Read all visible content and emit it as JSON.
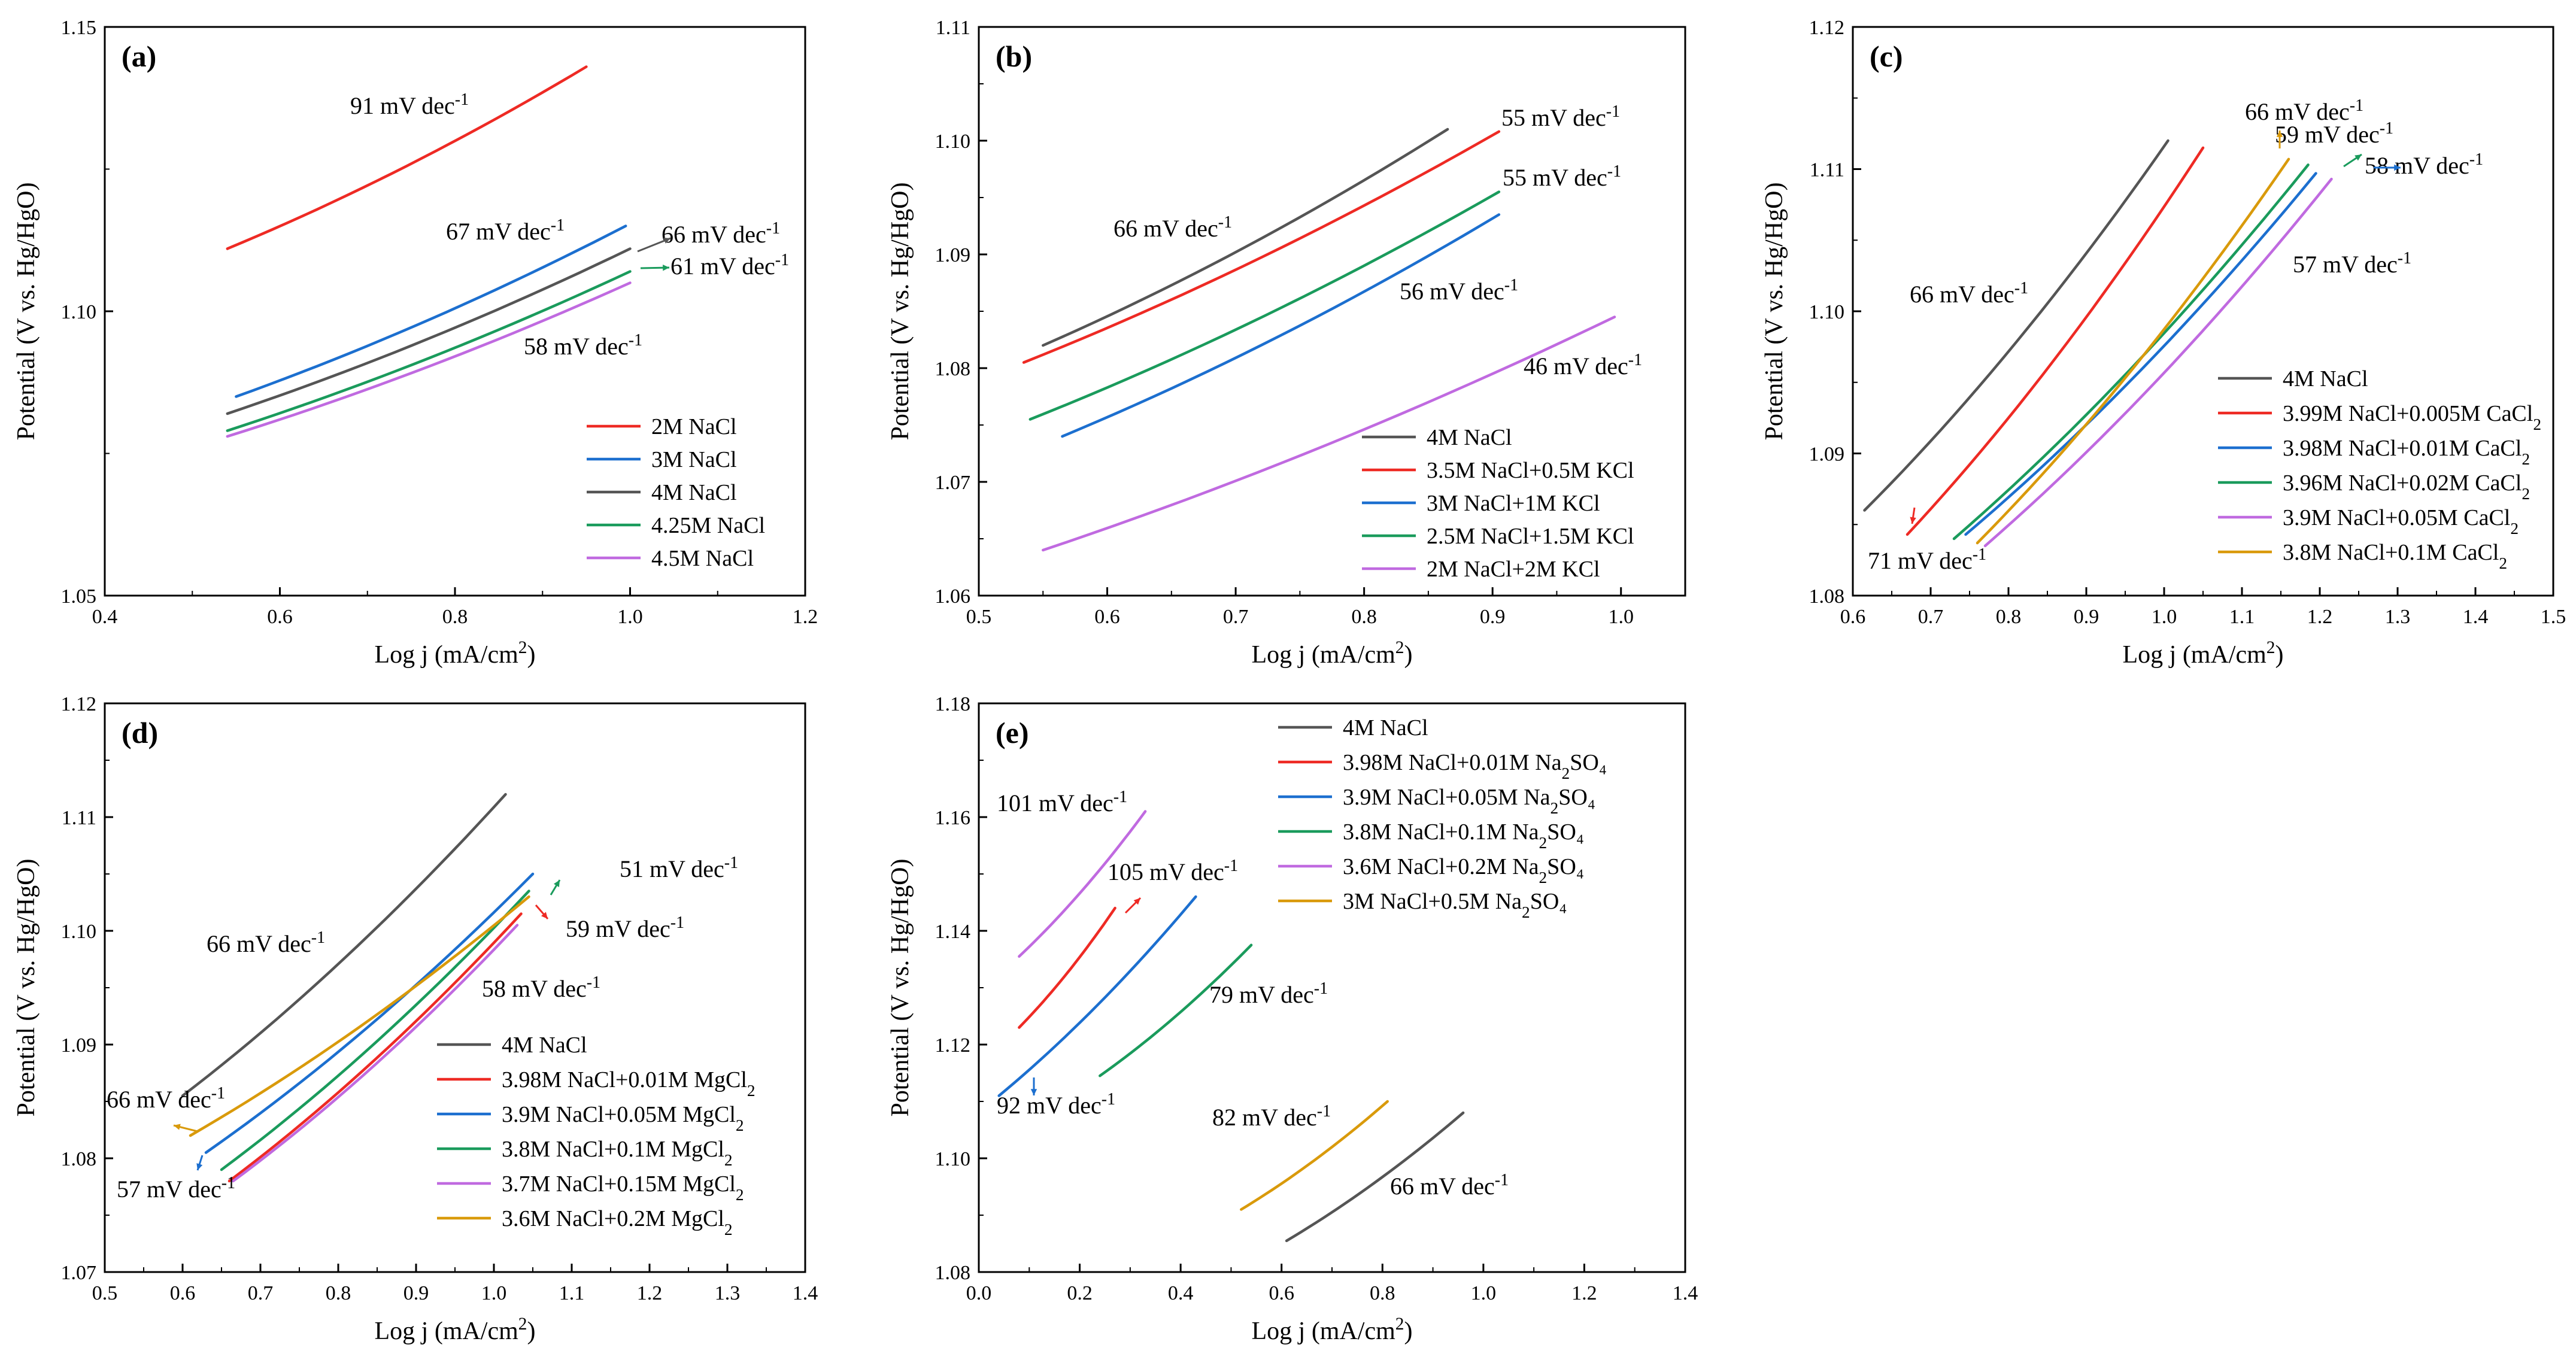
{
  "figure": {
    "panels": [
      {
        "id": "a",
        "panel_label": "(a)",
        "xlabel": "Log j (mA/cm²)",
        "ylabel": "Potential (V vs. Hg/HgO)",
        "xlim": [
          0.4,
          1.2
        ],
        "ylim": [
          1.05,
          1.15
        ],
        "xticks": [
          "0.4",
          "0.6",
          "0.8",
          "1.0",
          "1.2"
        ],
        "yticks": [
          "1.05",
          "1.10",
          "1.15"
        ],
        "legend": [
          "2M NaCl",
          "3M NaCl",
          "4M NaCl",
          "4.25M NaCl",
          "4.5M NaCl"
        ],
        "slopes": [
          "91 mV dec⁻¹",
          "67 mV dec⁻¹",
          "66 mV dec⁻¹",
          "61 mV dec⁻¹",
          "58 mV dec⁻¹"
        ]
      },
      {
        "id": "b",
        "panel_label": "(b)",
        "xlabel": "Log j (mA/cm²)",
        "ylabel": "Potential (V vs. Hg/HgO)",
        "xlim": [
          0.5,
          1.05
        ],
        "ylim": [
          1.06,
          1.11
        ],
        "xticks": [
          "0.5",
          "0.6",
          "0.7",
          "0.8",
          "0.9",
          "1.0"
        ],
        "yticks": [
          "1.06",
          "1.07",
          "1.08",
          "1.09",
          "1.10",
          "1.11"
        ],
        "legend": [
          "4M NaCl",
          "3.5M NaCl+0.5M KCl",
          "3M NaCl+1M KCl",
          "2.5M NaCl+1.5M KCl",
          "2M NaCl+2M KCl"
        ],
        "slopes": [
          "66 mV dec⁻¹",
          "55 mV dec⁻¹",
          "55 mV dec⁻¹",
          "56 mV dec⁻¹",
          "46 mV dec⁻¹"
        ]
      },
      {
        "id": "c",
        "panel_label": "(c)",
        "xlabel": "Log j (mA/cm²)",
        "ylabel": "Potential (V vs. Hg/HgO)",
        "xlim": [
          0.6,
          1.5
        ],
        "ylim": [
          1.08,
          1.12
        ],
        "xticks": [
          "0.6",
          "0.7",
          "0.8",
          "0.9",
          "1.0",
          "1.1",
          "1.2",
          "1.3",
          "1.4",
          "1.5"
        ],
        "yticks": [
          "1.08",
          "1.09",
          "1.10",
          "1.11",
          "1.12"
        ],
        "legend": [
          "4M NaCl",
          "3.99M NaCl+0.005M CaCl₂",
          "3.98M NaCl+0.01M CaCl₂",
          "3.96M NaCl+0.02M CaCl₂",
          "3.9M NaCl+0.05M CaCl₂",
          "3.8M NaCl+0.1M CaCl₂"
        ],
        "slopes": [
          "66 mV dec⁻¹",
          "71 mV dec⁻¹",
          "66 mV dec⁻¹",
          "59 mV dec⁻¹",
          "58 mV dec⁻¹",
          "57 mV dec⁻¹"
        ]
      },
      {
        "id": "d",
        "panel_label": "(d)",
        "xlabel": "Log j (mA/cm²)",
        "ylabel": "Potential (V vs. Hg/HgO)",
        "xlim": [
          0.5,
          1.4
        ],
        "ylim": [
          1.07,
          1.12
        ],
        "xticks": [
          "0.5",
          "0.6",
          "0.7",
          "0.8",
          "0.9",
          "1.0",
          "1.1",
          "1.2",
          "1.3",
          "1.4"
        ],
        "yticks": [
          "1.07",
          "1.08",
          "1.09",
          "1.10",
          "1.11",
          "1.12"
        ],
        "legend": [
          "4M NaCl",
          "3.98M NaCl+0.01M MgCl₂",
          "3.9M NaCl+0.05M MgCl₂",
          "3.8M NaCl+0.1M MgCl₂",
          "3.7M NaCl+0.15M MgCl₂",
          "3.6M NaCl+0.2M MgCl₂"
        ],
        "slopes": [
          "66 mV dec⁻¹",
          "51 mV dec⁻¹",
          "59 mV dec⁻¹",
          "58 mV dec⁻¹",
          "66 mV dec⁻¹",
          "57 mV dec⁻¹"
        ]
      },
      {
        "id": "e",
        "panel_label": "(e)",
        "xlabel": "Log j (mA/cm²)",
        "ylabel": "Potential (V vs. Hg/HgO)",
        "xlim": [
          0.0,
          1.4
        ],
        "ylim": [
          1.08,
          1.18
        ],
        "xticks": [
          "0.0",
          "0.2",
          "0.4",
          "0.6",
          "0.8",
          "1.0",
          "1.2",
          "1.4"
        ],
        "yticks": [
          "1.08",
          "1.10",
          "1.12",
          "1.14",
          "1.16",
          "1.18"
        ],
        "legend": [
          "4M NaCl",
          "3.98M NaCl+0.01M Na₂SO₄",
          "3.9M NaCl+0.05M Na₂SO₄",
          "3.8M NaCl+0.1M Na₂SO₄",
          "3.6M NaCl+0.2M Na₂SO₄",
          "3M NaCl+0.5M Na₂SO₄"
        ],
        "slopes": [
          "101 mV dec⁻¹",
          "105 mV dec⁻¹",
          "79 mV dec⁻¹",
          "92 mV dec⁻¹",
          "82 mV dec⁻¹",
          "66 mV dec⁻¹"
        ]
      }
    ]
  },
  "chart_data": [
    {
      "type": "line",
      "panel": "(a)",
      "title": "",
      "xlabel": "Log j (mA/cm²)",
      "ylabel": "Potential (V vs. Hg/HgO)",
      "xlim": [
        0.4,
        1.2
      ],
      "ylim": [
        1.05,
        1.15
      ],
      "series": [
        {
          "name": "2M NaCl",
          "color": "#ee2a24",
          "x": [
            0.54,
            0.95
          ],
          "y": [
            1.111,
            1.143
          ]
        },
        {
          "name": "3M NaCl",
          "color": "#1c6fcf",
          "x": [
            0.55,
            0.995
          ],
          "y": [
            1.085,
            1.115
          ]
        },
        {
          "name": "4M NaCl",
          "color": "#555555",
          "x": [
            0.54,
            1.0
          ],
          "y": [
            1.082,
            1.111
          ]
        },
        {
          "name": "4.25M NaCl",
          "color": "#1a9b5c",
          "x": [
            0.54,
            1.0
          ],
          "y": [
            1.079,
            1.107
          ]
        },
        {
          "name": "4.5M NaCl",
          "color": "#c06ae0",
          "x": [
            0.54,
            1.0
          ],
          "y": [
            1.078,
            1.105
          ]
        }
      ]
    },
    {
      "type": "line",
      "panel": "(b)",
      "title": "",
      "xlabel": "Log j (mA/cm²)",
      "ylabel": "Potential (V vs. Hg/HgO)",
      "xlim": [
        0.5,
        1.05
      ],
      "ylim": [
        1.06,
        1.11
      ],
      "series": [
        {
          "name": "4M NaCl",
          "color": "#555555",
          "x": [
            0.55,
            0.865
          ],
          "y": [
            1.082,
            1.101
          ]
        },
        {
          "name": "3.5M NaCl+0.5M KCl",
          "color": "#ee2a24",
          "x": [
            0.535,
            0.905
          ],
          "y": [
            1.0805,
            1.1008
          ]
        },
        {
          "name": "3M NaCl+1M KCl",
          "color": "#1c6fcf",
          "x": [
            0.565,
            0.905
          ],
          "y": [
            1.074,
            1.0935
          ]
        },
        {
          "name": "2.5M NaCl+1.5M KCl",
          "color": "#1a9b5c",
          "x": [
            0.54,
            0.905
          ],
          "y": [
            1.0755,
            1.0955
          ]
        },
        {
          "name": "2M NaCl+2M KCl",
          "color": "#c06ae0",
          "x": [
            0.55,
            0.995
          ],
          "y": [
            1.064,
            1.0845
          ]
        }
      ]
    },
    {
      "type": "line",
      "panel": "(c)",
      "title": "",
      "xlabel": "Log j (mA/cm²)",
      "ylabel": "Potential (V vs. Hg/HgO)",
      "xlim": [
        0.6,
        1.5
      ],
      "ylim": [
        1.08,
        1.12
      ],
      "series": [
        {
          "name": "4M NaCl",
          "color": "#555555",
          "x": [
            0.615,
            1.005
          ],
          "y": [
            1.086,
            1.112
          ]
        },
        {
          "name": "3.99M NaCl+0.005M CaCl₂",
          "color": "#ee2a24",
          "x": [
            0.67,
            1.05
          ],
          "y": [
            1.0843,
            1.1115
          ]
        },
        {
          "name": "3.98M NaCl+0.01M CaCl₂",
          "color": "#1c6fcf",
          "x": [
            0.745,
            1.195
          ],
          "y": [
            1.0843,
            1.1097
          ]
        },
        {
          "name": "3.96M NaCl+0.02M CaCl₂",
          "color": "#1a9b5c",
          "x": [
            0.73,
            1.185
          ],
          "y": [
            1.084,
            1.1103
          ]
        },
        {
          "name": "3.9M NaCl+0.05M CaCl₂",
          "color": "#c06ae0",
          "x": [
            0.77,
            1.215
          ],
          "y": [
            1.0835,
            1.1093
          ]
        },
        {
          "name": "3.8M NaCl+0.1M CaCl₂",
          "color": "#d99a0b",
          "x": [
            0.76,
            1.16
          ],
          "y": [
            1.0837,
            1.1107
          ]
        }
      ]
    },
    {
      "type": "line",
      "panel": "(d)",
      "title": "",
      "xlabel": "Log j (mA/cm²)",
      "ylabel": "Potential (V vs. Hg/HgO)",
      "xlim": [
        0.5,
        1.4
      ],
      "ylim": [
        1.07,
        1.12
      ],
      "series": [
        {
          "name": "4M NaCl",
          "color": "#555555",
          "x": [
            0.6,
            1.015
          ],
          "y": [
            1.0855,
            1.112
          ]
        },
        {
          "name": "3.98M NaCl+0.01M MgCl₂",
          "color": "#ee2a24",
          "x": [
            0.66,
            1.035
          ],
          "y": [
            1.078,
            1.1015
          ]
        },
        {
          "name": "3.9M NaCl+0.05M MgCl₂",
          "color": "#1c6fcf",
          "x": [
            0.63,
            1.05
          ],
          "y": [
            1.0805,
            1.105
          ]
        },
        {
          "name": "3.8M NaCl+0.1M MgCl₂",
          "color": "#1a9b5c",
          "x": [
            0.65,
            1.045
          ],
          "y": [
            1.079,
            1.1035
          ]
        },
        {
          "name": "3.7M NaCl+0.15M MgCl₂",
          "color": "#c06ae0",
          "x": [
            0.665,
            1.03
          ],
          "y": [
            1.078,
            1.1005
          ]
        },
        {
          "name": "3.6M NaCl+0.2M MgCl₂",
          "color": "#d99a0b",
          "x": [
            0.61,
            1.045
          ],
          "y": [
            1.082,
            1.103
          ]
        }
      ]
    },
    {
      "type": "line",
      "panel": "(e)",
      "title": "",
      "xlabel": "Log j (mA/cm²)",
      "ylabel": "Potential (V vs. Hg/HgO)",
      "xlim": [
        0.0,
        1.4
      ],
      "ylim": [
        1.08,
        1.18
      ],
      "series": [
        {
          "name": "4M NaCl",
          "color": "#555555",
          "x": [
            0.61,
            0.96
          ],
          "y": [
            1.0855,
            1.108
          ]
        },
        {
          "name": "3.98M NaCl+0.01M Na₂SO₄",
          "color": "#ee2a24",
          "x": [
            0.08,
            0.27
          ],
          "y": [
            1.123,
            1.144
          ]
        },
        {
          "name": "3.9M NaCl+0.05M Na₂SO₄",
          "color": "#1c6fcf",
          "x": [
            0.04,
            0.43
          ],
          "y": [
            1.111,
            1.146
          ]
        },
        {
          "name": "3.8M NaCl+0.1M Na₂SO₄",
          "color": "#1a9b5c",
          "x": [
            0.24,
            0.54
          ],
          "y": [
            1.1145,
            1.1375
          ]
        },
        {
          "name": "3.6M NaCl+0.2M Na₂SO₄",
          "color": "#c06ae0",
          "x": [
            0.08,
            0.33
          ],
          "y": [
            1.1355,
            1.161
          ]
        },
        {
          "name": "3M NaCl+0.5M Na₂SO₄",
          "color": "#d99a0b",
          "x": [
            0.52,
            0.81
          ],
          "y": [
            1.091,
            1.11
          ]
        }
      ]
    }
  ]
}
